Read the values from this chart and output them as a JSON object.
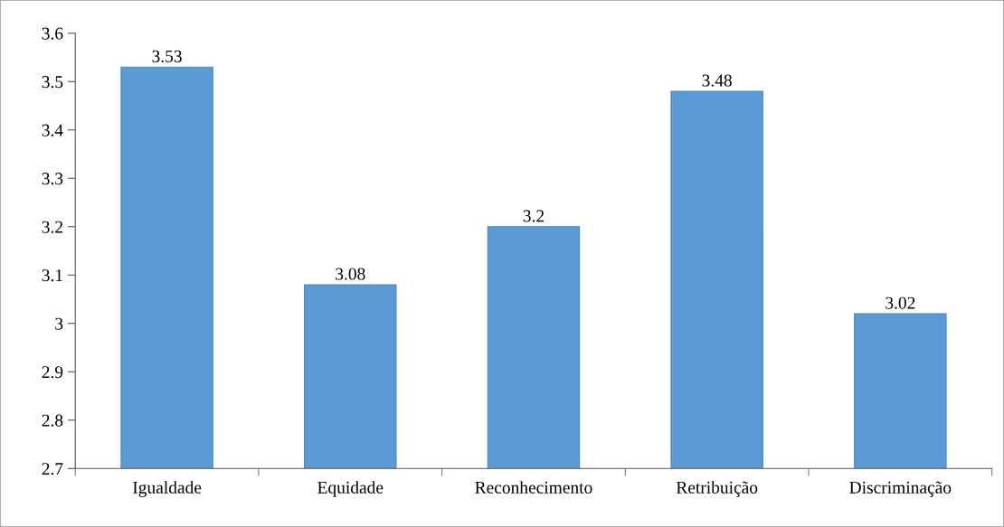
{
  "chart_data": {
    "type": "bar",
    "categories": [
      "Igualdade",
      "Equidade",
      "Reconhecimento",
      "Retribuição",
      "Discriminação"
    ],
    "values": [
      3.53,
      3.08,
      3.2,
      3.48,
      3.02
    ],
    "color": "#5b9bd5",
    "ylim": [
      2.7,
      3.6
    ],
    "yticks": [
      2.7,
      2.8,
      2.9,
      3,
      3.1,
      3.2,
      3.3,
      3.4,
      3.5,
      3.6
    ],
    "data_labels": true,
    "grid": false,
    "legend": false
  }
}
